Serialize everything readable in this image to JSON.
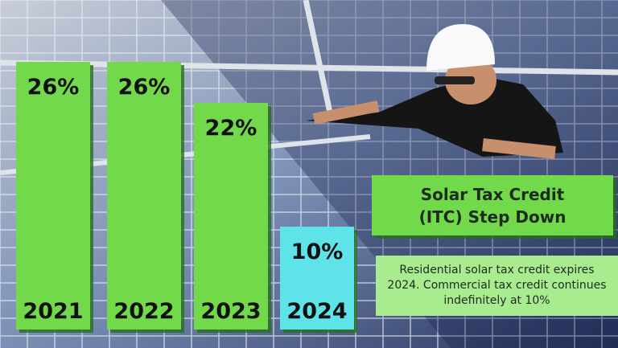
{
  "chart_data": {
    "type": "bar",
    "title": "Solar Tax Credit (ITC) Step Down",
    "annotation": "Residential solar tax credit expires 2024. Commercial tax credit continues indefinitely at 10%",
    "categories": [
      "2021",
      "2022",
      "2023",
      "2024"
    ],
    "values": [
      26,
      26,
      22,
      10
    ],
    "value_labels": [
      "26%",
      "26%",
      "22%",
      "10%"
    ],
    "colors": [
      "#72d94b",
      "#72d94b",
      "#72d94b",
      "#5ee3e8"
    ]
  }
}
